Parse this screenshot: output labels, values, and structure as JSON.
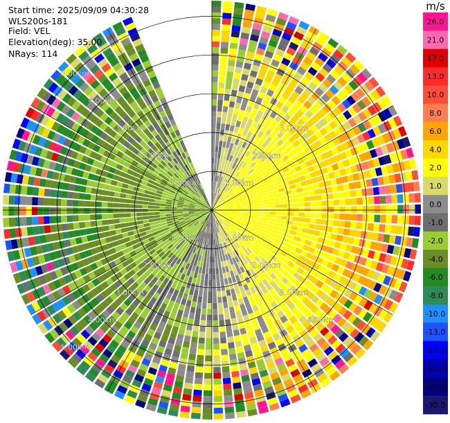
{
  "chart_data": {
    "type": "polar_ppi",
    "title_lines": [
      "Start time: 2025/09/09 04:30:28",
      "WLS200s-181",
      "Field: VEL",
      "Elevation(deg): 35.00",
      "NRays: 114"
    ],
    "field": "VEL",
    "units": "m/s",
    "max_range_km": 5.4,
    "range_rings_km": [
      1,
      2,
      3,
      4,
      5
    ],
    "range_labels": [
      {
        "text": "1.00km",
        "quadrant": "NE",
        "range_km": 1
      },
      {
        "text": "2.00km",
        "quadrant": "NE",
        "range_km": 2
      },
      {
        "text": "3.00km",
        "quadrant": "NE",
        "range_km": 3
      },
      {
        "text": "1.00km",
        "quadrant": "NW",
        "range_km": 1
      },
      {
        "text": "2.00km",
        "quadrant": "NW",
        "range_km": 2
      },
      {
        "text": "3.00km",
        "quadrant": "NW",
        "range_km": 3
      },
      {
        "text": "4.00km",
        "quadrant": "NW",
        "range_km": 4
      },
      {
        "text": "5.00km",
        "quadrant": "NW",
        "range_km": 5
      },
      {
        "text": "1.00km",
        "quadrant": "SE",
        "range_km": 1
      },
      {
        "text": "2.00km",
        "quadrant": "SE",
        "range_km": 2
      },
      {
        "text": "3.00km",
        "quadrant": "SE",
        "range_km": 3
      },
      {
        "text": "4.00km",
        "quadrant": "SE",
        "range_km": 4
      },
      {
        "text": "1.00km",
        "quadrant": "SW",
        "range_km": 1
      },
      {
        "text": "2.00km",
        "quadrant": "SW",
        "range_km": 2
      },
      {
        "text": "3.00km",
        "quadrant": "SW",
        "range_km": 3
      },
      {
        "text": "4.00km",
        "quadrant": "SW",
        "range_km": 4
      },
      {
        "text": "5.00km",
        "quadrant": "SW",
        "range_km": 5
      }
    ],
    "spoke_azimuths_deg": [
      0,
      30,
      60,
      90,
      120,
      150,
      180,
      210,
      240,
      270,
      300,
      330
    ],
    "missing_sector_deg": [
      338,
      360
    ],
    "colorbar": {
      "label": "m/s",
      "ticks": [
        "26.0",
        "21.0",
        "17.0",
        "13.0",
        "10.0",
        "8.0",
        "6.0",
        "4.0",
        "2.0",
        "1.0",
        "0.0",
        "-1.0",
        "-2.0",
        "-4.0",
        "-6.0",
        "-8.0",
        "-10.0",
        "-13.0",
        "-17.0",
        "-21.0",
        "-26.0",
        "-30.0"
      ],
      "colors": [
        "#ff1493",
        "#ff69b4",
        "#e00000",
        "#ff2a2a",
        "#ff4d3a",
        "#ff7f50",
        "#ffa500",
        "#ffd700",
        "#ffff00",
        "#d9d96a",
        "#8c8c8c",
        "#6e6e6e",
        "#9acd32",
        "#6b8e23",
        "#228b22",
        "#2e8b57",
        "#1e90ff",
        "#1a53ff",
        "#0000ff",
        "#0000b0",
        "#000080",
        "#191970"
      ]
    },
    "velocity_pattern": {
      "description": "Positive (receding) velocities east, negative (approaching) west",
      "center_value": 0.0,
      "near_east_value": 3.0,
      "far_east_value": 8.0,
      "near_west_value": -2.0,
      "far_west_value": -5.0
    }
  }
}
